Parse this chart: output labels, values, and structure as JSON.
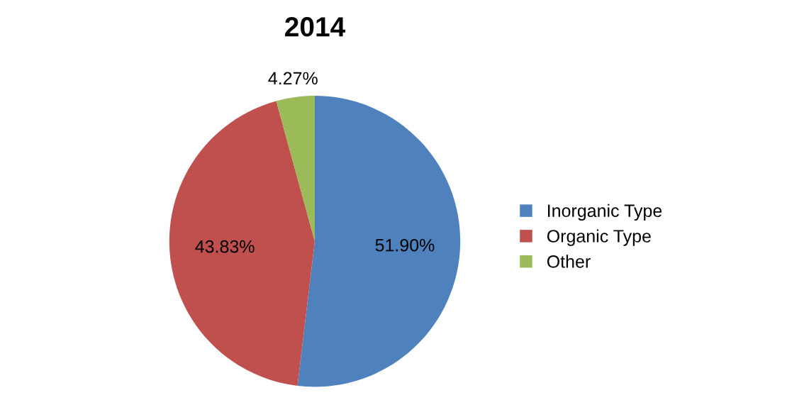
{
  "chart_data": {
    "type": "pie",
    "title": "2014",
    "categories": [
      "Inorganic Type",
      "Organic Type",
      "Other"
    ],
    "values": [
      51.9,
      43.83,
      4.27
    ],
    "value_labels": [
      "51.90%",
      "43.83%",
      "4.27%"
    ],
    "colors": [
      "#4f81bd",
      "#c0504d",
      "#9bbb59"
    ],
    "legend": "right"
  }
}
